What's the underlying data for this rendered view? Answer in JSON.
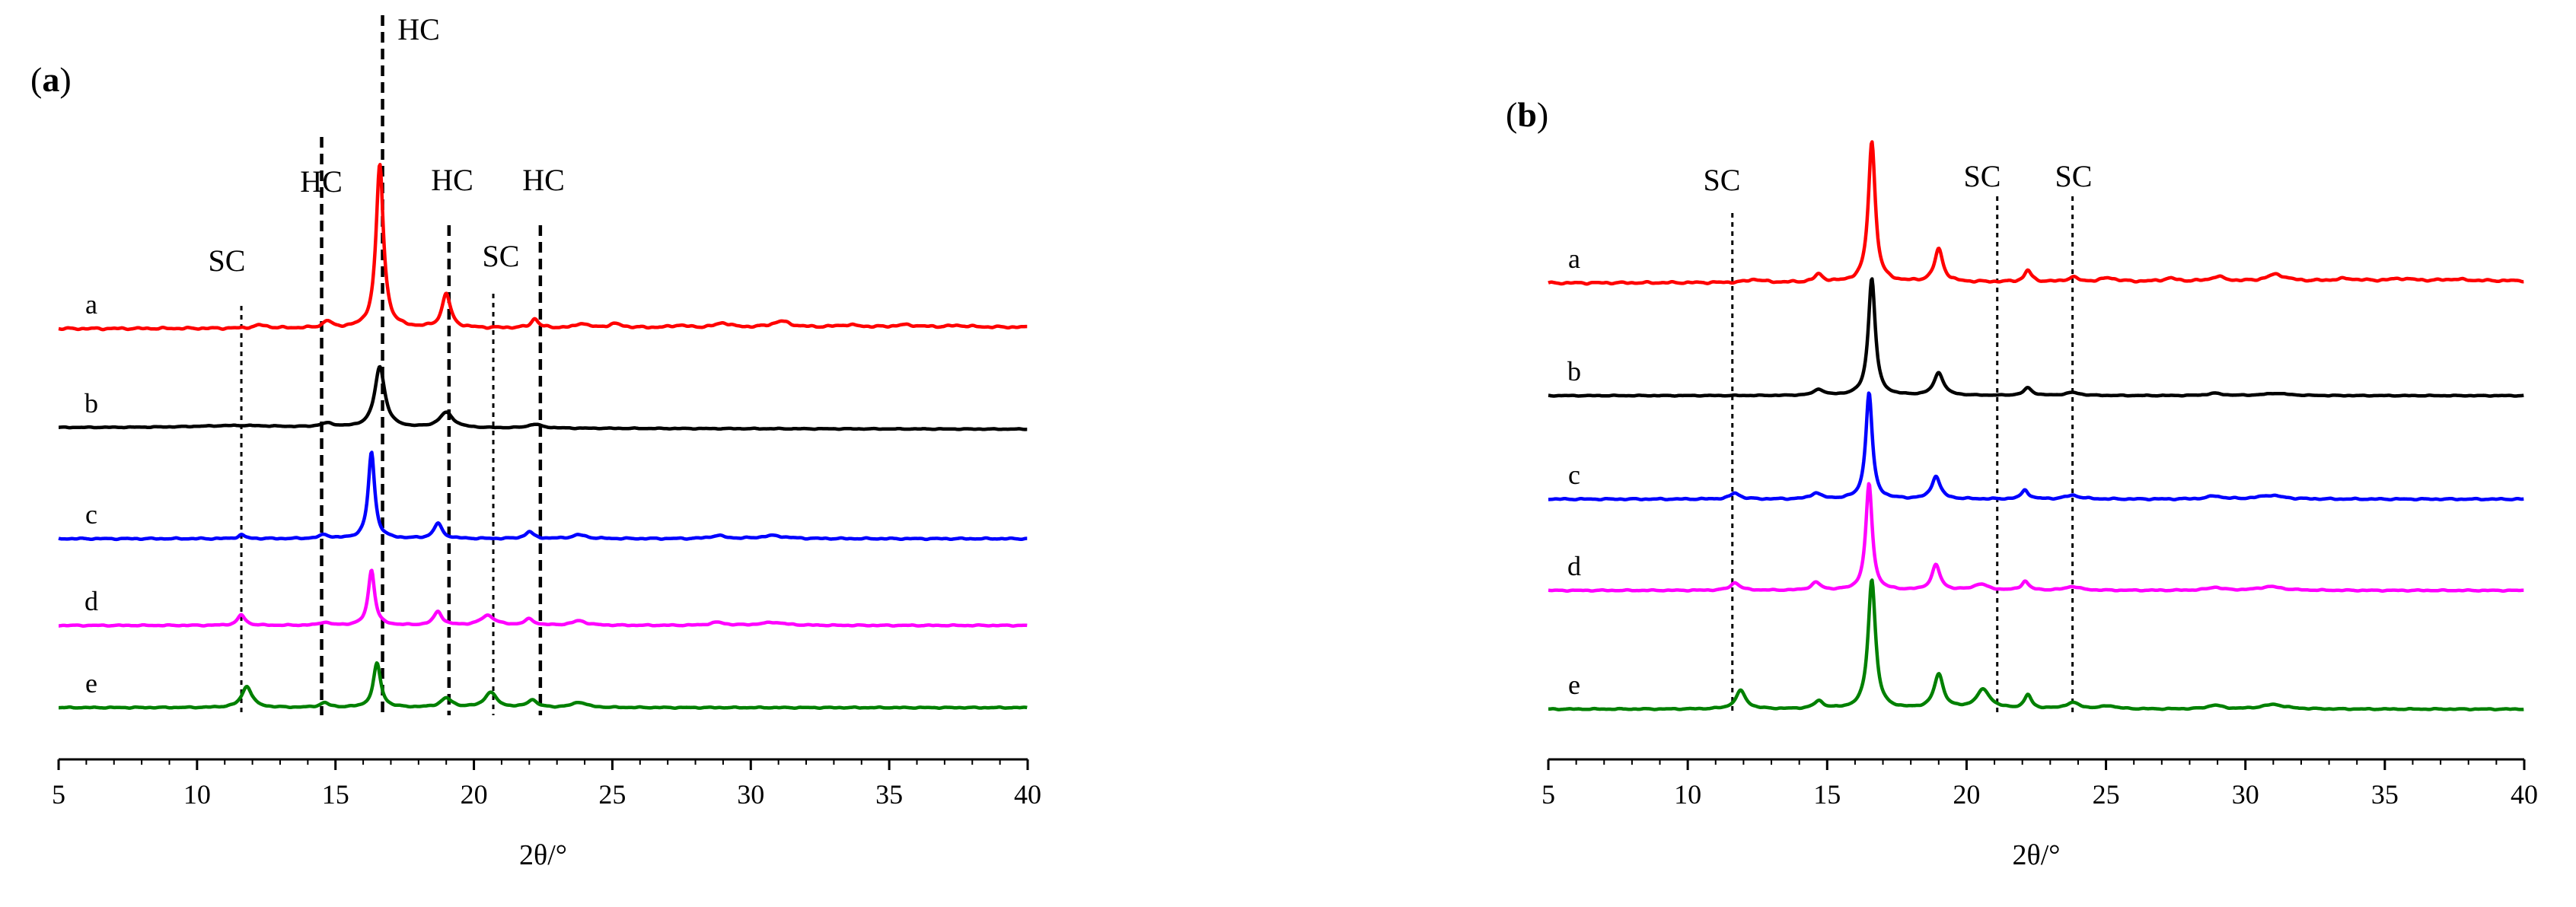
{
  "chart_data": [
    {
      "type": "line",
      "panel_label": "a",
      "xlabel": "2θ/°",
      "ylabel": "",
      "xlim": [
        5,
        40
      ],
      "xticks": [
        5,
        10,
        15,
        20,
        25,
        30,
        35,
        40
      ],
      "y_ticks_shown": false,
      "reference_lines": [
        {
          "x": 11.6,
          "label": "SC",
          "style": "dotted"
        },
        {
          "x": 14.5,
          "label": "HC",
          "style": "dashed"
        },
        {
          "x": 16.7,
          "label": "HC",
          "style": "dashed"
        },
        {
          "x": 19.1,
          "label": "HC",
          "style": "dashed"
        },
        {
          "x": 20.7,
          "label": "SC",
          "style": "dotted"
        },
        {
          "x": 22.4,
          "label": "HC",
          "style": "dashed"
        }
      ],
      "series": [
        {
          "name": "a",
          "color": "#ff0000",
          "baseline_start": 0.0,
          "baseline_end": 0.02,
          "noise": 0.014,
          "peaks": [
            [
              12.3,
              0.04,
              0.3
            ],
            [
              14.7,
              0.09,
              0.18
            ],
            [
              16.6,
              2.15,
              0.16
            ],
            [
              19.0,
              0.45,
              0.18
            ],
            [
              22.2,
              0.12,
              0.15
            ],
            [
              23.9,
              0.06,
              0.2
            ],
            [
              25.1,
              0.05,
              0.3
            ],
            [
              27.4,
              0.03,
              0.3
            ],
            [
              29.0,
              0.06,
              0.3
            ],
            [
              31.1,
              0.08,
              0.4
            ],
            [
              33.5,
              0.03,
              0.5
            ],
            [
              35.6,
              0.03,
              0.5
            ],
            [
              37.5,
              0.02,
              0.5
            ]
          ]
        },
        {
          "name": "b",
          "color": "#000000",
          "baseline_start": 0.0,
          "baseline_end": -0.02,
          "noise": 0.006,
          "peaks": [
            [
              11.5,
              0.03,
              2.0
            ],
            [
              14.7,
              0.05,
              0.3
            ],
            [
              16.6,
              0.8,
              0.22
            ],
            [
              19.0,
              0.2,
              0.3
            ],
            [
              22.2,
              0.05,
              0.3
            ]
          ]
        },
        {
          "name": "c",
          "color": "#0000ff",
          "baseline_start": 0.0,
          "baseline_end": 0.0,
          "noise": 0.01,
          "peaks": [
            [
              11.6,
              0.05,
              0.15
            ],
            [
              14.6,
              0.05,
              0.2
            ],
            [
              16.3,
              1.14,
              0.14
            ],
            [
              18.7,
              0.2,
              0.18
            ],
            [
              22.0,
              0.09,
              0.18
            ],
            [
              23.8,
              0.05,
              0.3
            ],
            [
              28.8,
              0.04,
              0.3
            ],
            [
              30.8,
              0.04,
              0.5
            ]
          ]
        },
        {
          "name": "d",
          "color": "#ff00ff",
          "baseline_start": 0.0,
          "baseline_end": 0.0,
          "noise": 0.008,
          "peaks": [
            [
              11.6,
              0.14,
              0.16
            ],
            [
              14.6,
              0.04,
              0.2
            ],
            [
              16.3,
              0.73,
              0.14
            ],
            [
              18.7,
              0.18,
              0.18
            ],
            [
              20.5,
              0.13,
              0.3
            ],
            [
              22.0,
              0.08,
              0.2
            ],
            [
              23.8,
              0.06,
              0.3
            ],
            [
              28.8,
              0.04,
              0.3
            ],
            [
              30.8,
              0.04,
              0.5
            ]
          ]
        },
        {
          "name": "e",
          "color": "#008000",
          "baseline_start": 0.0,
          "baseline_end": 0.0,
          "noise": 0.008,
          "peaks": [
            [
              11.8,
              0.28,
              0.22
            ],
            [
              14.6,
              0.06,
              0.2
            ],
            [
              16.5,
              0.58,
              0.16
            ],
            [
              19.0,
              0.12,
              0.25
            ],
            [
              20.6,
              0.2,
              0.25
            ],
            [
              22.1,
              0.1,
              0.2
            ],
            [
              23.8,
              0.07,
              0.3
            ]
          ]
        }
      ]
    },
    {
      "type": "line",
      "panel_label": "b",
      "xlabel": "2θ/°",
      "ylabel": "",
      "xlim": [
        5,
        40
      ],
      "xticks": [
        5,
        10,
        15,
        20,
        25,
        30,
        35,
        40
      ],
      "y_ticks_shown": false,
      "reference_lines": [
        {
          "x": 11.6,
          "label": "SC",
          "style": "dotted"
        },
        {
          "x": 21.1,
          "label": "SC",
          "style": "dotted"
        },
        {
          "x": 23.8,
          "label": "SC",
          "style": "dotted"
        }
      ],
      "series": [
        {
          "name": "a",
          "color": "#ff0000",
          "baseline_start": 0.0,
          "baseline_end": 0.03,
          "noise": 0.014,
          "peaks": [
            [
              12.4,
              0.04,
              0.3
            ],
            [
              14.7,
              0.1,
              0.18
            ],
            [
              16.6,
              1.85,
              0.15
            ],
            [
              19.0,
              0.43,
              0.18
            ],
            [
              22.2,
              0.15,
              0.15
            ],
            [
              23.8,
              0.06,
              0.2
            ],
            [
              25.1,
              0.05,
              0.3
            ],
            [
              27.3,
              0.04,
              0.3
            ],
            [
              29.0,
              0.06,
              0.3
            ],
            [
              31.1,
              0.09,
              0.4
            ],
            [
              33.6,
              0.03,
              0.5
            ],
            [
              35.6,
              0.03,
              0.5
            ],
            [
              37.5,
              0.02,
              0.5
            ]
          ]
        },
        {
          "name": "b",
          "color": "#000000",
          "baseline_start": 0.0,
          "baseline_end": 0.0,
          "noise": 0.006,
          "peaks": [
            [
              14.7,
              0.08,
              0.2
            ],
            [
              16.6,
              1.54,
              0.15
            ],
            [
              19.0,
              0.3,
              0.2
            ],
            [
              22.2,
              0.1,
              0.18
            ],
            [
              23.8,
              0.04,
              0.3
            ],
            [
              28.9,
              0.03,
              0.3
            ],
            [
              31.1,
              0.03,
              0.5
            ]
          ]
        },
        {
          "name": "c",
          "color": "#0000ff",
          "baseline_start": 0.0,
          "baseline_end": 0.0,
          "noise": 0.01,
          "peaks": [
            [
              11.7,
              0.08,
              0.2
            ],
            [
              14.6,
              0.08,
              0.2
            ],
            [
              16.5,
              1.4,
              0.14
            ],
            [
              18.9,
              0.3,
              0.18
            ],
            [
              22.1,
              0.12,
              0.15
            ],
            [
              23.8,
              0.05,
              0.3
            ],
            [
              28.9,
              0.04,
              0.3
            ],
            [
              30.9,
              0.05,
              0.5
            ]
          ]
        },
        {
          "name": "d",
          "color": "#ff00ff",
          "baseline_start": 0.0,
          "baseline_end": 0.0,
          "noise": 0.008,
          "peaks": [
            [
              11.7,
              0.1,
              0.2
            ],
            [
              14.6,
              0.1,
              0.2
            ],
            [
              16.5,
              1.4,
              0.14
            ],
            [
              18.9,
              0.33,
              0.18
            ],
            [
              20.5,
              0.08,
              0.3
            ],
            [
              22.1,
              0.12,
              0.15
            ],
            [
              23.8,
              0.05,
              0.3
            ],
            [
              28.9,
              0.04,
              0.3
            ],
            [
              30.9,
              0.05,
              0.5
            ]
          ]
        },
        {
          "name": "e",
          "color": "#008000",
          "baseline_start": 0.0,
          "baseline_end": 0.0,
          "noise": 0.008,
          "peaks": [
            [
              11.9,
              0.24,
              0.22
            ],
            [
              14.7,
              0.1,
              0.2
            ],
            [
              16.6,
              1.7,
              0.16
            ],
            [
              19.0,
              0.45,
              0.2
            ],
            [
              20.6,
              0.25,
              0.3
            ],
            [
              22.2,
              0.18,
              0.15
            ],
            [
              23.8,
              0.08,
              0.3
            ],
            [
              25.1,
              0.04,
              0.3
            ],
            [
              28.9,
              0.05,
              0.3
            ],
            [
              31.0,
              0.06,
              0.5
            ]
          ]
        }
      ]
    }
  ]
}
